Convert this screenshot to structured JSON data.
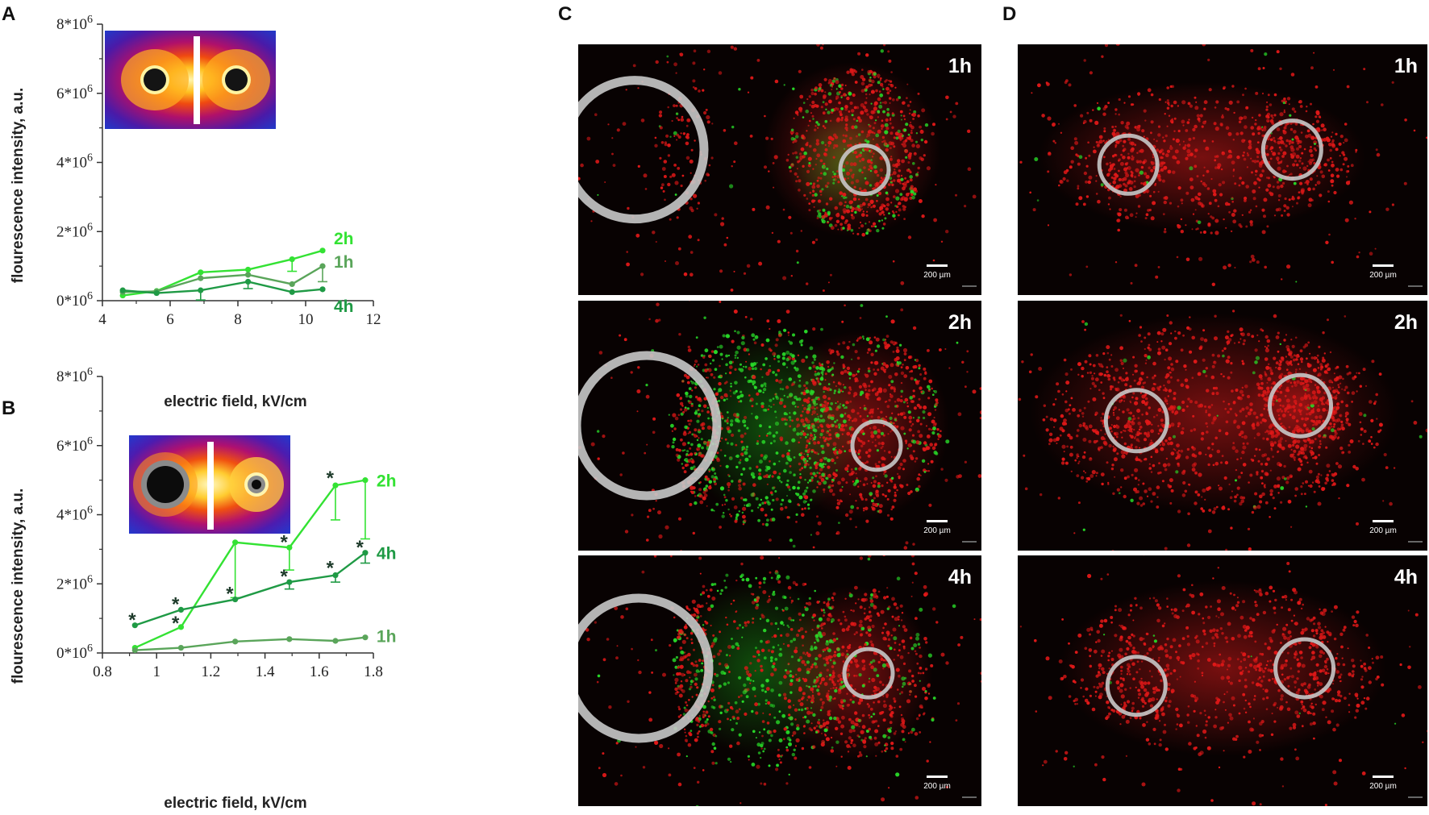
{
  "panel_letters": {
    "A": "A",
    "B": "B",
    "C": "C",
    "D": "D"
  },
  "colors": {
    "h2": "#33e233",
    "h4": "#1f9a45",
    "h1": "#5aa55a",
    "axis": "#333333",
    "micro_bg": "#080202",
    "red_cells": "#e01818",
    "green_cells": "#28d828",
    "ring": "#c8c8c8"
  },
  "chart_data": [
    {
      "id": "A",
      "type": "line",
      "xlabel": "electric field, kV/cm",
      "ylabel": "flourescence intensity, a.u.",
      "xlim": [
        4,
        12
      ],
      "ylim": [
        0,
        8000000
      ],
      "x_ticks": [
        4,
        6,
        8,
        10,
        12
      ],
      "x_tick_labels": [
        "4",
        "6",
        "8",
        "10",
        "12"
      ],
      "y_ticks": [
        0,
        2000000,
        4000000,
        6000000,
        8000000
      ],
      "y_tick_bases": [
        "0*10",
        "2*10",
        "4*10",
        "6*10",
        "8*10"
      ],
      "y_tick_exp": "6",
      "grid": false,
      "inset": "two-equal-electrodes",
      "series": [
        {
          "name": "2h",
          "color": "#33e233",
          "x": [
            4.6,
            5.6,
            6.9,
            8.3,
            9.6,
            10.5
          ],
          "y": [
            150000,
            280000,
            820000,
            900000,
            1200000,
            1450000
          ],
          "err": [
            0,
            0,
            0,
            0,
            350000,
            0
          ]
        },
        {
          "name": "1h",
          "color": "#5aa55a",
          "x": [
            4.6,
            5.6,
            6.9,
            8.3,
            9.6,
            10.5
          ],
          "y": [
            250000,
            270000,
            650000,
            750000,
            480000,
            1000000
          ],
          "err": [
            0,
            0,
            0,
            0,
            0,
            450000
          ]
        },
        {
          "name": "4h",
          "color": "#1f9a45",
          "x": [
            4.6,
            5.6,
            6.9,
            8.3,
            9.6,
            10.5
          ],
          "y": [
            300000,
            220000,
            300000,
            550000,
            250000,
            330000
          ],
          "err": [
            0,
            0,
            280000,
            200000,
            0,
            0
          ]
        }
      ]
    },
    {
      "id": "B",
      "type": "line",
      "xlabel": "electric field, kV/cm",
      "ylabel": "flourescence intensity, a.u.",
      "xlim": [
        0.8,
        1.8
      ],
      "ylim": [
        0,
        8000000
      ],
      "x_ticks": [
        0.8,
        1.0,
        1.2,
        1.4,
        1.6,
        1.8
      ],
      "x_tick_labels": [
        "0.8",
        "1",
        "1.2",
        "1.4",
        "1.6",
        "1.8"
      ],
      "y_ticks": [
        0,
        2000000,
        4000000,
        6000000,
        8000000
      ],
      "y_tick_bases": [
        "0*10",
        "2*10",
        "4*10",
        "6*10",
        "8*10"
      ],
      "y_tick_exp": "6",
      "grid": false,
      "inset": "big-and-small-electrodes",
      "series": [
        {
          "name": "2h",
          "color": "#33e233",
          "x": [
            0.92,
            1.09,
            1.29,
            1.49,
            1.66,
            1.77
          ],
          "y": [
            150000,
            750000,
            3200000,
            3050000,
            4850000,
            5000000
          ],
          "err": [
            0,
            0,
            1600000,
            650000,
            1000000,
            1700000
          ]
        },
        {
          "name": "4h",
          "color": "#1f9a45",
          "x": [
            0.92,
            1.09,
            1.29,
            1.49,
            1.66,
            1.77
          ],
          "y": [
            800000,
            1250000,
            1550000,
            2050000,
            2250000,
            2900000
          ],
          "err": [
            0,
            0,
            0,
            200000,
            200000,
            300000
          ]
        },
        {
          "name": "1h",
          "color": "#5aa55a",
          "x": [
            0.92,
            1.09,
            1.29,
            1.49,
            1.66,
            1.77
          ],
          "y": [
            80000,
            150000,
            330000,
            400000,
            350000,
            450000
          ],
          "err": [
            0,
            0,
            0,
            0,
            0,
            0
          ]
        }
      ],
      "annotations": [
        {
          "text": "*",
          "x": 0.91,
          "y": 1100000
        },
        {
          "text": "*",
          "x": 1.07,
          "y": 1550000
        },
        {
          "text": "*",
          "x": 1.07,
          "y": 1000000
        },
        {
          "text": "*",
          "x": 1.27,
          "y": 1850000
        },
        {
          "text": "*",
          "x": 1.47,
          "y": 3350000
        },
        {
          "text": "*",
          "x": 1.47,
          "y": 2350000
        },
        {
          "text": "*",
          "x": 1.64,
          "y": 5200000
        },
        {
          "text": "*",
          "x": 1.64,
          "y": 2600000
        },
        {
          "text": "*",
          "x": 1.75,
          "y": 3200000
        }
      ]
    }
  ],
  "micrographs": {
    "C": [
      {
        "time": "1h",
        "scale_bar": "200 µm"
      },
      {
        "time": "2h",
        "scale_bar": "200 µm"
      },
      {
        "time": "4h",
        "scale_bar": "200 µm"
      }
    ],
    "D": [
      {
        "time": "1h",
        "scale_bar": "200 µm"
      },
      {
        "time": "2h",
        "scale_bar": "200 µm"
      },
      {
        "time": "4h",
        "scale_bar": "200 µm"
      }
    ]
  }
}
